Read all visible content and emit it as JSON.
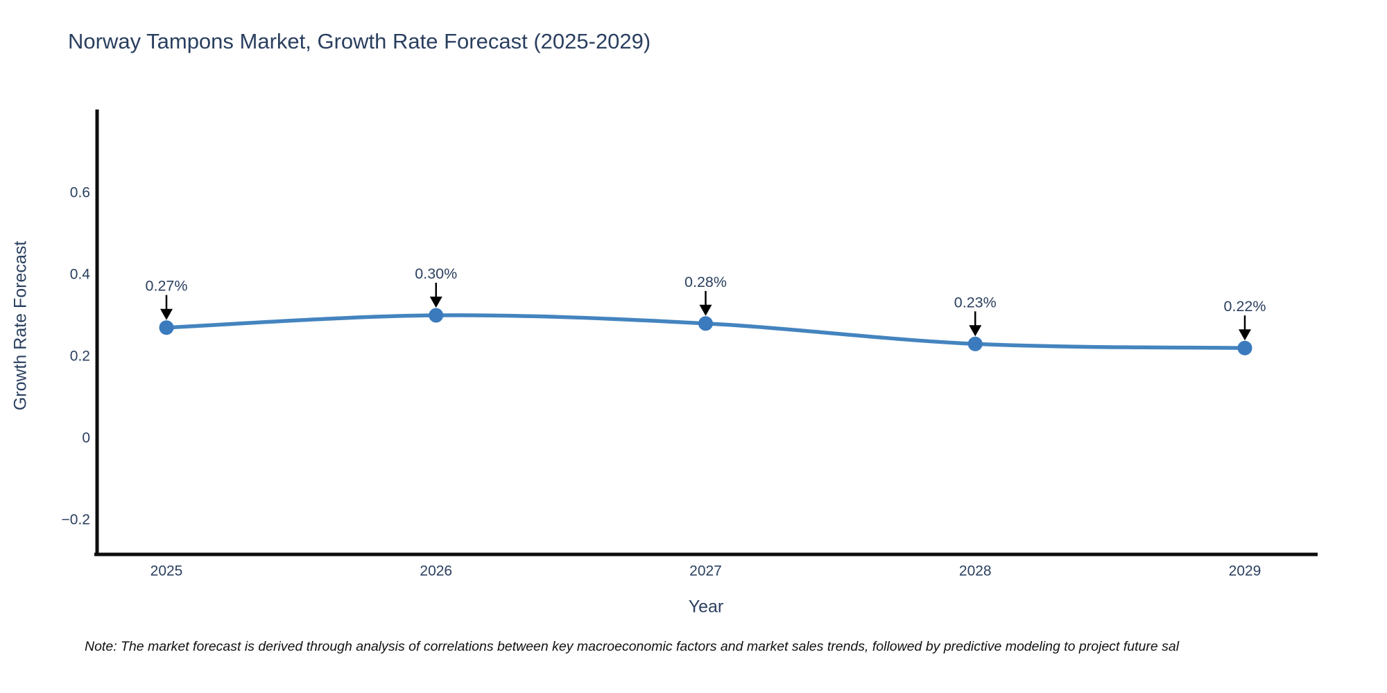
{
  "title": "Norway Tampons Market, Growth Rate Forecast (2025-2029)",
  "note": "Note: The market forecast is derived through analysis of correlations between key macroeconomic factors and market sales trends, followed by predictive modeling to project future sal",
  "chart_data": {
    "type": "line",
    "title": "Norway Tampons Market, Growth Rate Forecast (2025-2029)",
    "xlabel": "Year",
    "ylabel": "Growth Rate Forecast",
    "categories": [
      "2025",
      "2026",
      "2027",
      "2028",
      "2029"
    ],
    "values": [
      0.27,
      0.3,
      0.28,
      0.23,
      0.22
    ],
    "point_labels": [
      "0.27%",
      "0.30%",
      "0.28%",
      "0.23%",
      "0.22%"
    ],
    "yticks": [
      -0.2,
      0,
      0.2,
      0.4,
      0.6
    ],
    "ylim": [
      -0.285,
      0.805
    ],
    "grid": false,
    "legend": false,
    "line_shape": "spline",
    "colors": {
      "line": "#4484bf",
      "marker": "#3a7abd",
      "axis": "#0d0d0d",
      "text": "#2a3f5f",
      "arrow": "#000000",
      "background": "#ffffff"
    }
  }
}
